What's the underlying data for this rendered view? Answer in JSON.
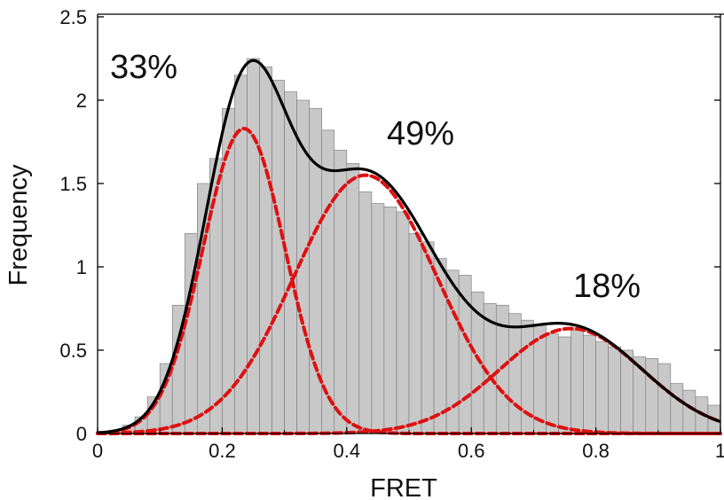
{
  "chart_data": {
    "type": "bar",
    "xlabel": "FRET",
    "ylabel": "Frequency",
    "xlim": [
      0,
      1
    ],
    "ylim": [
      0,
      2.5
    ],
    "x_ticks": [
      "0",
      "0.2",
      "0.4",
      "0.6",
      "0.8",
      "1"
    ],
    "y_ticks": [
      "0",
      "0.5",
      "1",
      "1.5",
      "2",
      "2.5"
    ],
    "grid": false,
    "bin_width": 0.02,
    "histogram": {
      "bin_centers": [
        0.01,
        0.03,
        0.05,
        0.07,
        0.09,
        0.11,
        0.13,
        0.15,
        0.17,
        0.19,
        0.21,
        0.23,
        0.25,
        0.27,
        0.29,
        0.31,
        0.33,
        0.35,
        0.37,
        0.39,
        0.41,
        0.43,
        0.45,
        0.47,
        0.49,
        0.51,
        0.53,
        0.55,
        0.57,
        0.59,
        0.61,
        0.63,
        0.65,
        0.67,
        0.69,
        0.71,
        0.73,
        0.75,
        0.77,
        0.79,
        0.81,
        0.83,
        0.85,
        0.87,
        0.89,
        0.91,
        0.93,
        0.95,
        0.97,
        0.99
      ],
      "values": [
        0.01,
        0.02,
        0.05,
        0.1,
        0.22,
        0.42,
        0.77,
        1.2,
        1.5,
        1.65,
        1.95,
        2.15,
        2.25,
        2.2,
        2.12,
        2.05,
        2.0,
        1.95,
        1.82,
        1.7,
        1.62,
        1.45,
        1.38,
        1.36,
        1.33,
        1.2,
        1.15,
        1.05,
        0.98,
        0.95,
        0.85,
        0.78,
        0.77,
        0.72,
        0.68,
        0.65,
        0.6,
        0.58,
        0.62,
        0.59,
        0.55,
        0.52,
        0.5,
        0.46,
        0.45,
        0.42,
        0.3,
        0.26,
        0.22,
        0.17
      ],
      "color": "#c8c8c8"
    },
    "gaussians": [
      {
        "mu": 0.235,
        "sigma": 0.066,
        "amplitude": 1.83,
        "color": "#dd1111"
      },
      {
        "mu": 0.43,
        "sigma": 0.115,
        "amplitude": 1.55,
        "color": "#dd1111"
      },
      {
        "mu": 0.76,
        "sigma": 0.115,
        "amplitude": 0.63,
        "color": "#dd1111"
      }
    ],
    "fit_color": "#000000",
    "annotations": [
      "33%",
      "49%",
      "18%"
    ]
  }
}
